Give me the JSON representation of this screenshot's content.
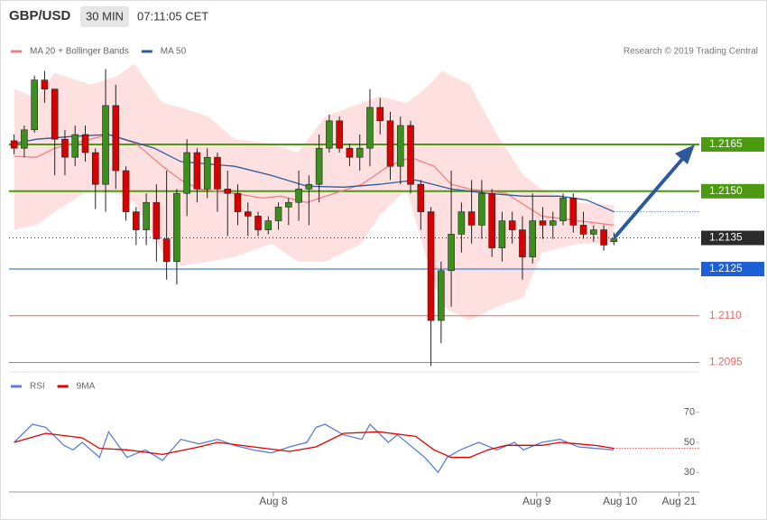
{
  "header": {
    "symbol": "GBP/USD",
    "interval": "30 MIN",
    "time": "07:11:05 CET"
  },
  "chart_data": [
    {
      "type": "candlestick",
      "annotation": "Research © 2019 Trading Central",
      "xlim": [
        -0.5,
        67.4
      ],
      "ylim": [
        1.2094,
        1.2194
      ],
      "up_color": "#3b8f1c",
      "down_color": "#d90000",
      "open": [
        1.21662,
        1.21638,
        1.21697,
        1.21857,
        1.21828,
        1.21667,
        1.21609,
        1.21682,
        1.21624,
        1.21522,
        1.21775,
        1.21566,
        1.21434,
        1.21376,
        1.21464,
        1.21347,
        1.21274,
        1.21493,
        1.21624,
        1.21507,
        1.21609,
        1.21507,
        1.21493,
        1.21434,
        1.2142,
        1.21376,
        1.21405,
        1.21449,
        1.21464,
        1.21507,
        1.21522,
        1.21638,
        1.21726,
        1.21638,
        1.21609,
        1.21638,
        1.21769,
        1.21726,
        1.2158,
        1.21711,
        1.21522,
        1.21434,
        1.21085,
        1.21245,
        1.21362,
        1.21434,
        1.21391,
        1.21493,
        1.21318,
        1.21405,
        1.21376,
        1.21289,
        1.21405,
        1.21391,
        1.21405,
        1.21478,
        1.21391,
        1.21362,
        1.21376,
        1.21338
      ],
      "high": [
        1.21682,
        1.21711,
        1.21871,
        1.21886,
        1.21828,
        1.21697,
        1.21711,
        1.21711,
        1.21638,
        1.21892,
        1.21842,
        1.2158,
        1.21449,
        1.21493,
        1.21522,
        1.21566,
        1.21507,
        1.21667,
        1.21638,
        1.21638,
        1.21624,
        1.21566,
        1.21522,
        1.21464,
        1.21434,
        1.2142,
        1.21464,
        1.21478,
        1.21566,
        1.21551,
        1.21682,
        1.21746,
        1.2174,
        1.21653,
        1.21682,
        1.21828,
        1.21799,
        1.21755,
        1.2174,
        1.21726,
        1.21536,
        1.21449,
        1.21274,
        1.21566,
        1.21464,
        1.21536,
        1.21536,
        1.21507,
        1.21434,
        1.21434,
        1.2142,
        1.21493,
        1.21449,
        1.21434,
        1.21493,
        1.21493,
        1.21434,
        1.21391,
        1.21391,
        1.21367
      ],
      "low": [
        1.21618,
        1.21609,
        1.21688,
        1.21784,
        1.21551,
        1.21551,
        1.2158,
        1.21595,
        1.21443,
        1.21434,
        1.21507,
        1.21405,
        1.21327,
        1.21327,
        1.21274,
        1.21216,
        1.21201,
        1.2142,
        1.21464,
        1.21478,
        1.21434,
        1.21356,
        1.21391,
        1.21356,
        1.21356,
        1.21362,
        1.21376,
        1.21391,
        1.21405,
        1.21391,
        1.21464,
        1.21624,
        1.21624,
        1.2158,
        1.21566,
        1.2158,
        1.21682,
        1.21536,
        1.21522,
        1.21493,
        1.21376,
        1.20939,
        1.21012,
        1.21129,
        1.21303,
        1.21332,
        1.21347,
        1.21289,
        1.21274,
        1.21332,
        1.21216,
        1.21268,
        1.21347,
        1.21347,
        1.21391,
        1.21367,
        1.21347,
        1.21338,
        1.21309,
        1.21327
      ],
      "close": [
        1.21638,
        1.21697,
        1.21857,
        1.21828,
        1.21667,
        1.21609,
        1.21682,
        1.21624,
        1.21522,
        1.21775,
        1.21566,
        1.21434,
        1.21376,
        1.21464,
        1.21347,
        1.21274,
        1.21493,
        1.21624,
        1.21507,
        1.21609,
        1.21507,
        1.21493,
        1.21434,
        1.2142,
        1.21376,
        1.21405,
        1.21449,
        1.21464,
        1.21507,
        1.21522,
        1.21638,
        1.21726,
        1.21638,
        1.21609,
        1.21638,
        1.21769,
        1.21726,
        1.2158,
        1.21711,
        1.21522,
        1.21434,
        1.21085,
        1.21245,
        1.21362,
        1.21434,
        1.21391,
        1.21493,
        1.21318,
        1.21405,
        1.21376,
        1.21289,
        1.21405,
        1.21391,
        1.21405,
        1.21478,
        1.21391,
        1.21362,
        1.21376,
        1.21327,
        1.21347
      ],
      "series": [
        {
          "name": "MA 20 + Bollinger Bands",
          "color": "#f08080",
          "band_color": "#ffe0e0",
          "x": [
            0,
            2.2,
            4.0,
            7.5,
            9.3,
            12.0,
            14.6,
            16.4,
            18.2,
            21.7,
            24.4,
            26.2,
            28.8,
            31.5,
            34.2,
            36.8,
            39.0,
            41.3,
            43.0,
            44.8,
            48.4,
            51.9,
            55.5,
            59.0
          ],
          "values": [
            1.21612,
            1.21609,
            1.21638,
            1.21667,
            1.21682,
            1.21653,
            1.2158,
            1.21536,
            1.21507,
            1.21493,
            1.21478,
            1.21484,
            1.21464,
            1.21493,
            1.21522,
            1.2158,
            1.21609,
            1.2158,
            1.21522,
            1.21507,
            1.21493,
            1.2142,
            1.21405,
            1.21391
          ],
          "band_x": [
            0,
            2.2,
            4.0,
            7.5,
            10.2,
            11.8,
            14.6,
            16.4,
            19.1,
            21.7,
            25.3,
            27.9,
            30.6,
            34.2,
            35.9,
            38.6,
            40.4,
            42.1,
            44.8,
            47.5,
            50.1,
            51.9,
            55.5,
            59.0
          ],
          "upper": [
            1.21828,
            1.21799,
            1.2188,
            1.21842,
            1.21871,
            1.21909,
            1.21784,
            1.21769,
            1.2174,
            1.21667,
            1.21653,
            1.21624,
            1.2174,
            1.21784,
            1.21804,
            1.21784,
            1.21828,
            1.21886,
            1.21842,
            1.21682,
            1.21551,
            1.21507,
            1.21464,
            1.21455
          ],
          "lower": [
            1.21376,
            1.21391,
            1.21434,
            1.21507,
            1.21493,
            1.21464,
            1.21303,
            1.2126,
            1.21274,
            1.21289,
            1.21332,
            1.21274,
            1.21274,
            1.21332,
            1.2142,
            1.21507,
            1.21303,
            1.21129,
            1.21085,
            1.21129,
            1.21158,
            1.21303,
            1.21332,
            1.21332
          ]
        },
        {
          "name": "MA 50",
          "color": "#2e5a9c",
          "extend": true,
          "x": [
            0,
            2.2,
            5.8,
            9.3,
            13.8,
            16.4,
            21.7,
            25.3,
            28.8,
            32.4,
            35.9,
            39.5,
            43.0,
            46.6,
            50.1,
            53.7,
            56.3,
            59.0
          ],
          "values": [
            1.21653,
            1.21667,
            1.21676,
            1.21682,
            1.21638,
            1.21595,
            1.2158,
            1.21551,
            1.21516,
            1.21513,
            1.21522,
            1.21536,
            1.21507,
            1.21493,
            1.21484,
            1.21484,
            1.21472,
            1.21434
          ]
        }
      ],
      "levels": [
        {
          "value": 1.2165,
          "label": "1.2165",
          "color": "#4b9a12",
          "width": 2,
          "line": "solid",
          "boxed": true
        },
        {
          "value": 1.215,
          "label": "1.2150",
          "color": "#4b9a12",
          "width": 2,
          "line": "solid",
          "boxed": true
        },
        {
          "value": 1.2135,
          "label": "1.2135",
          "color": "#2b2b2b",
          "width": 1,
          "line": "dotted",
          "boxed": true
        },
        {
          "value": 1.2125,
          "label": "1.2125",
          "color": "#1f5fd6",
          "width": 1,
          "line": "solid",
          "boxed": true
        },
        {
          "value": 1.211,
          "label": "1.2110",
          "color": "#e06a6a",
          "width": 1,
          "line": "solid",
          "boxed": false
        },
        {
          "value": 1.2095,
          "label": "1.2095",
          "color": "#e06a6a",
          "width": 1,
          "line": "solid",
          "boxed": false
        }
      ]
    },
    {
      "type": "line",
      "xlim": [
        -0.5,
        67.4
      ],
      "ylim": [
        20,
        80
      ],
      "yticks": [
        30,
        50,
        70
      ],
      "xticks": [
        {
          "value": 25.5,
          "label": "Aug 8"
        },
        {
          "value": 51.4,
          "label": "Aug 9"
        },
        {
          "value": 59.6,
          "label": "Aug 10"
        },
        {
          "value": 65.4,
          "label": "Aug 21"
        }
      ],
      "series": [
        {
          "name": "RSI",
          "color": "#5b7fd6",
          "x": [
            0,
            1.8,
            3.1,
            4.9,
            5.8,
            6.7,
            8.4,
            9.3,
            11.1,
            12.9,
            14.6,
            16.4,
            18.2,
            20.0,
            21.7,
            23.5,
            25.3,
            27.1,
            28.8,
            29.7,
            30.6,
            32.4,
            34.2,
            35.0,
            36.8,
            37.7,
            39.5,
            40.4,
            41.7,
            42.6,
            43.9,
            45.7,
            47.5,
            49.2,
            50.1,
            51.9,
            53.7,
            55.5,
            57.2,
            59.0
          ],
          "values": [
            50,
            62,
            60,
            48,
            45,
            50,
            40,
            57,
            40,
            45,
            38,
            52,
            49,
            52,
            48,
            45,
            43,
            47,
            50,
            60,
            62,
            55,
            52,
            62,
            50,
            55,
            45,
            40,
            30,
            40,
            45,
            50,
            45,
            50,
            45,
            50,
            52,
            47,
            46,
            45
          ]
        },
        {
          "name": "9MA",
          "color": "#e00000",
          "extend": true,
          "x": [
            0,
            3.1,
            6.7,
            8.4,
            11.1,
            14.6,
            18.2,
            20.0,
            23.5,
            27.1,
            29.7,
            32.4,
            35.9,
            39.5,
            41.3,
            43.0,
            44.8,
            46.6,
            48.4,
            51.9,
            53.7,
            57.2,
            59.0
          ],
          "values": [
            50,
            56,
            53,
            46,
            45,
            42,
            47,
            50,
            47,
            44,
            47,
            56,
            57,
            54,
            45,
            40,
            40,
            45,
            48,
            48,
            50,
            48,
            46
          ]
        }
      ]
    }
  ]
}
